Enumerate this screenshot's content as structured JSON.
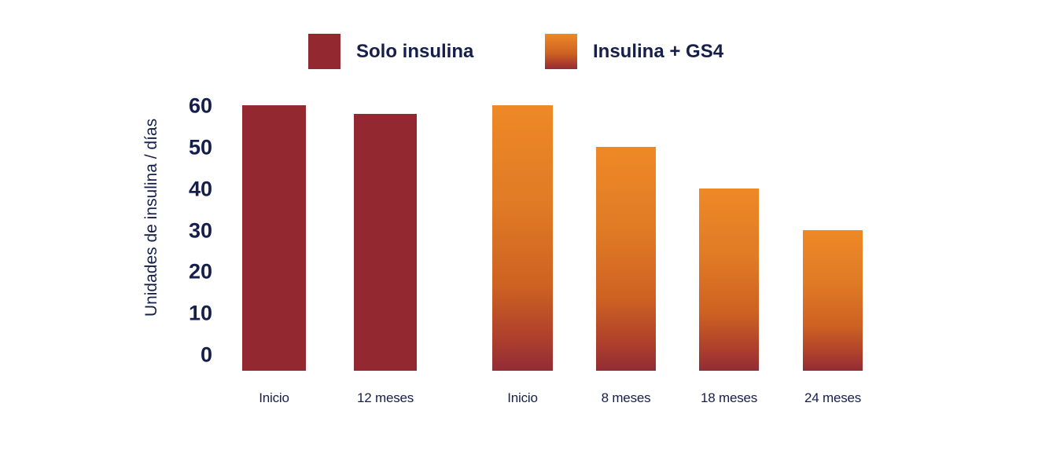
{
  "colors": {
    "text": "#161F4A",
    "solo_bar": "#942831",
    "gs4_gradient_top": "#EE8927",
    "gs4_gradient_top2": "#E07A25",
    "gs4_gradient_mid": "#CD6222",
    "gs4_gradient_low": "#AE3F2C",
    "gs4_gradient_bottom": "#922C35"
  },
  "legend": {
    "items": [
      {
        "label": "Solo insulina",
        "series": "solo"
      },
      {
        "label": "Insulina + GS4",
        "series": "gs4"
      }
    ]
  },
  "chart_data": {
    "type": "bar",
    "title": "",
    "xlabel": "",
    "ylabel": "Unidades de insulina / días",
    "ylim": [
      0,
      60
    ],
    "yticks": [
      0,
      10,
      20,
      30,
      40,
      50,
      60
    ],
    "grid": false,
    "legend_position": "top",
    "series": [
      {
        "name": "Solo insulina",
        "color": "#942831",
        "categories": [
          "Inicio",
          "12 meses"
        ],
        "values": [
          60,
          58
        ]
      },
      {
        "name": "Insulina + GS4",
        "color": "gradient #EE8927 to #922C35",
        "categories": [
          "Inicio",
          "8 meses",
          "18 meses",
          "24 meses"
        ],
        "values": [
          60,
          50,
          40,
          30
        ]
      }
    ]
  }
}
